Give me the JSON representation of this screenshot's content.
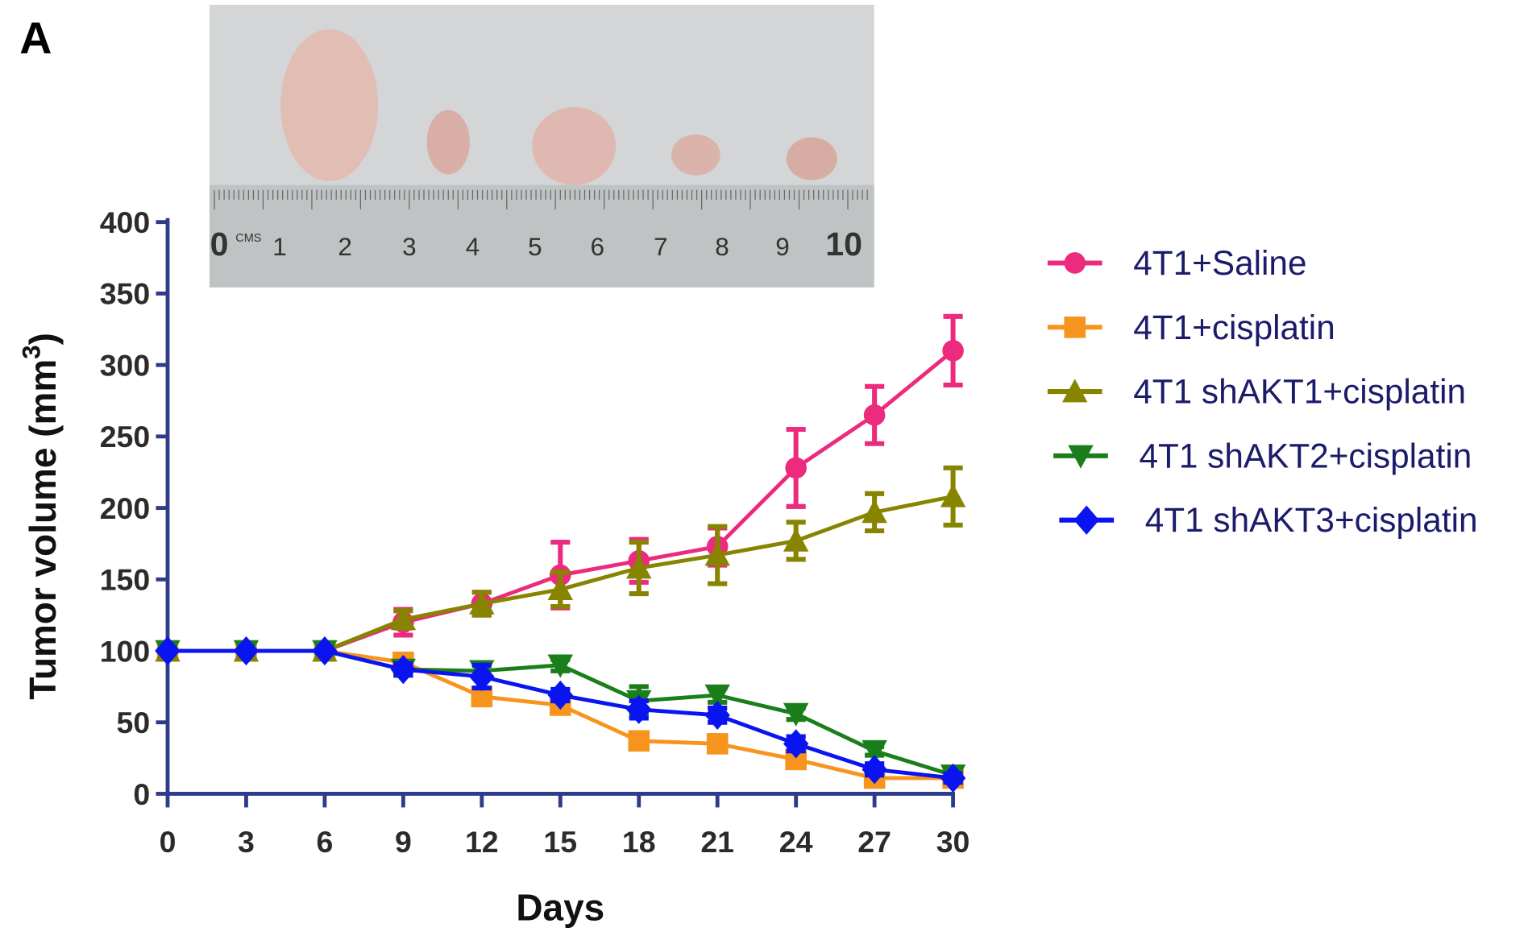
{
  "panel_label": "A",
  "photo": {
    "description_free": true,
    "ruler_labels": [
      "0",
      "CMS",
      "1",
      "2",
      "3",
      "4",
      "5",
      "6",
      "7",
      "8",
      "9",
      "10"
    ]
  },
  "chart_data": {
    "type": "line",
    "title": "",
    "xlabel": "Days",
    "ylabel": "Tumor volume (mm",
    "ylabel_sup": "3",
    "ylabel_close": ")",
    "x": [
      0,
      3,
      6,
      9,
      12,
      15,
      18,
      21,
      24,
      27,
      30
    ],
    "xticks": [
      "0",
      "3",
      "6",
      "9",
      "12",
      "15",
      "18",
      "21",
      "24",
      "27",
      "30"
    ],
    "yticks": [
      "0",
      "50",
      "100",
      "150",
      "200",
      "250",
      "300",
      "350",
      "400"
    ],
    "xlim": [
      0,
      30
    ],
    "ylim": [
      0,
      400
    ],
    "grid": false,
    "legend_position": "right",
    "series": [
      {
        "name": "4T1+Saline",
        "color": "#ec2a7e",
        "marker": "circle",
        "values": [
          100,
          100,
          100,
          120,
          133,
          153,
          163,
          173,
          228,
          265,
          310
        ],
        "errors": [
          0,
          0,
          0,
          9,
          8,
          23,
          15,
          13,
          27,
          20,
          24
        ]
      },
      {
        "name": "4T1+cisplatin",
        "color": "#f7941d",
        "marker": "square",
        "values": [
          100,
          100,
          100,
          92,
          68,
          62,
          37,
          35,
          24,
          11,
          11
        ],
        "errors": [
          0,
          0,
          0,
          4,
          5,
          4,
          4,
          4,
          4,
          4,
          3
        ]
      },
      {
        "name": "4T1 shAKT1+cisplatin",
        "color": "#878400",
        "marker": "triangle-up",
        "values": [
          100,
          100,
          100,
          122,
          133,
          143,
          158,
          167,
          177,
          197,
          208
        ],
        "errors": [
          0,
          0,
          0,
          6,
          8,
          12,
          18,
          20,
          13,
          13,
          20
        ]
      },
      {
        "name": "4T1 shAKT2+cisplatin",
        "color": "#1a7f1a",
        "marker": "triangle-down",
        "values": [
          100,
          100,
          100,
          87,
          86,
          90,
          65,
          69,
          56,
          30,
          13
        ],
        "errors": [
          0,
          0,
          0,
          4,
          4,
          4,
          10,
          5,
          4,
          3,
          3
        ]
      },
      {
        "name": "4T1 shAKT3+cisplatin",
        "color": "#0a14f0",
        "marker": "diamond",
        "values": [
          100,
          100,
          100,
          87,
          82,
          69,
          59,
          55,
          35,
          17,
          11
        ],
        "errors": [
          0,
          0,
          0,
          4,
          8,
          4,
          6,
          5,
          5,
          4,
          3
        ]
      }
    ]
  },
  "colors": {
    "axis": "#2e3a8a"
  }
}
